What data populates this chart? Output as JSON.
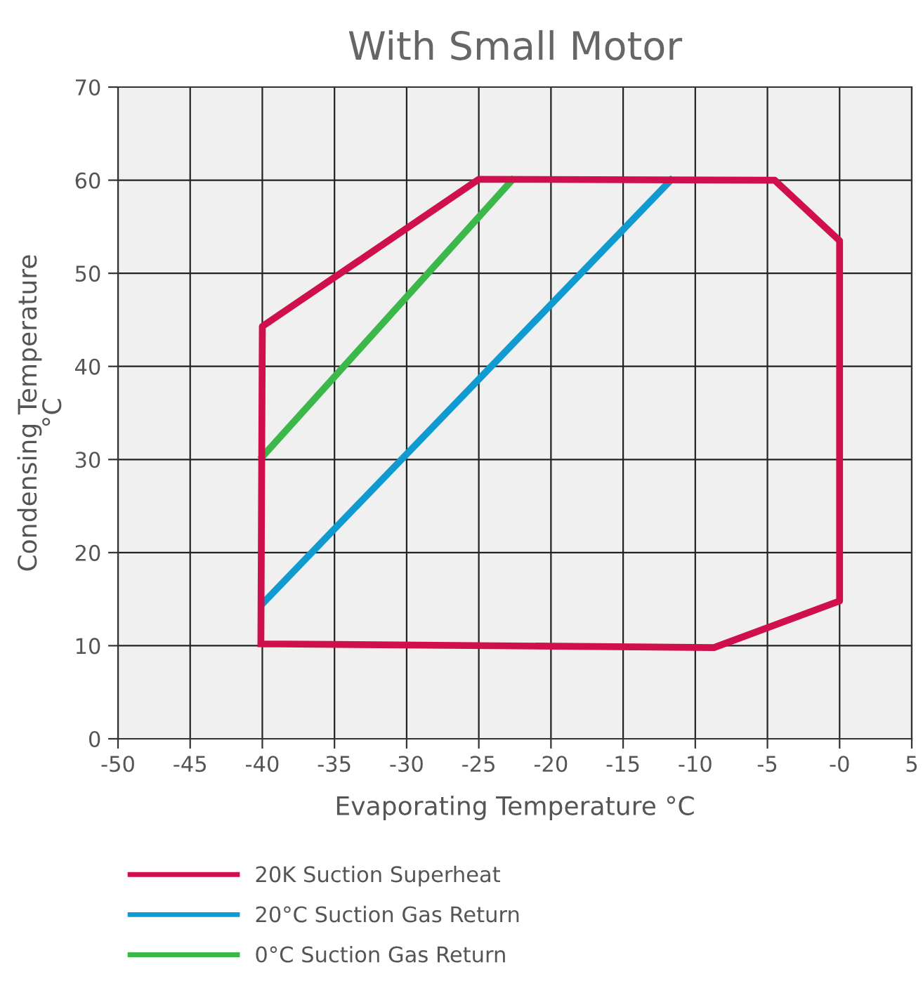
{
  "chart_data": {
    "type": "line",
    "title": "With Small Motor",
    "xlabel": "Evaporating Temperature °C",
    "ylabel": "Condensing Temperature\n°C",
    "series": [
      {
        "name": "20K Suction Superheat",
        "color": "#d0104c",
        "x": [
          -40.1,
          -40,
          -25,
          -4.5,
          0,
          0,
          -8.7,
          -40
        ],
        "values": [
          10.2,
          44.3,
          60.1,
          60,
          53.5,
          14.8,
          9.8,
          10.2
        ]
      },
      {
        "name": "20°C Suction Gas Return",
        "color": "#0f9bd0",
        "x": [
          -40,
          -11.7
        ],
        "values": [
          14.5,
          60
        ]
      },
      {
        "name": "0°C Suction Gas Return",
        "color": "#3cb84a",
        "x": [
          -40,
          -22.7
        ],
        "values": [
          30.3,
          60
        ]
      }
    ],
    "xlim": [
      -50,
      5
    ],
    "xticks": [
      -50,
      -45,
      -40,
      -35,
      -30,
      -25,
      -20,
      -15,
      -10,
      -5,
      {
        "value": 0,
        "label": "-0"
      },
      5
    ],
    "ylim": [
      0,
      70
    ],
    "yticks": [
      0,
      10,
      20,
      30,
      40,
      50,
      60,
      70
    ],
    "grid": true,
    "legend": "bottom",
    "marker": "none",
    "line_style": "solid"
  }
}
